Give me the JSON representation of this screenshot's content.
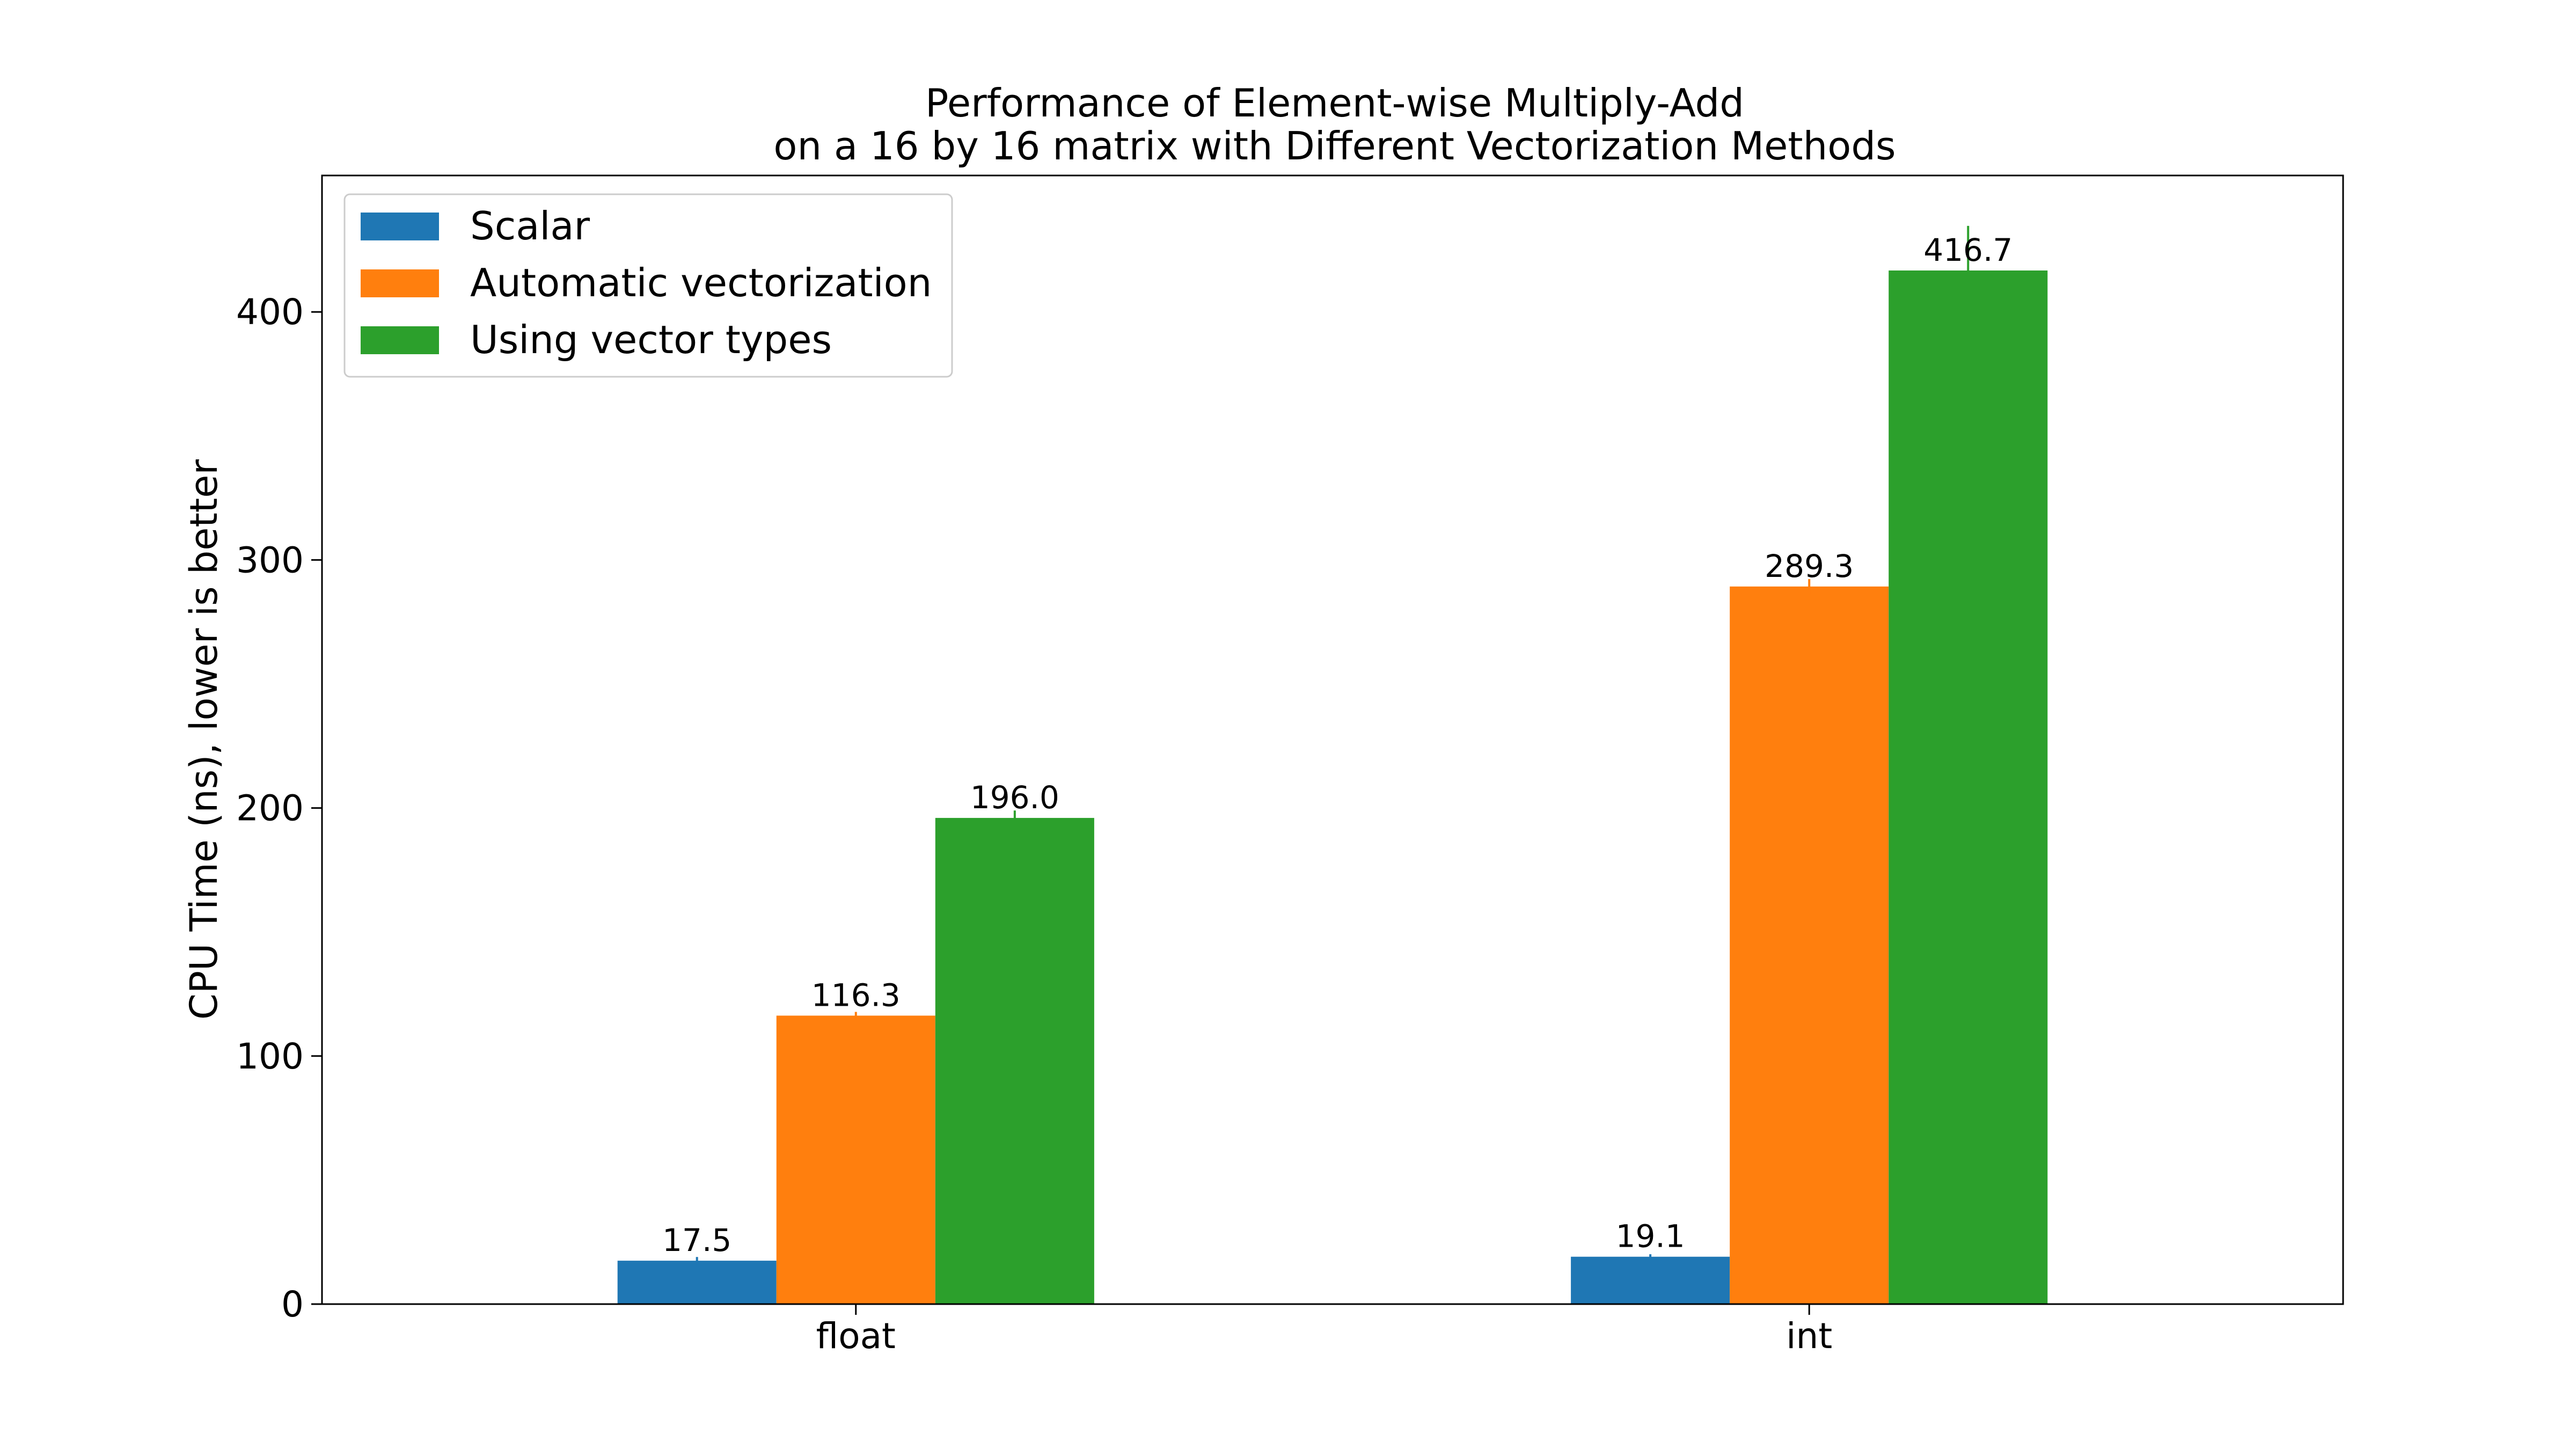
{
  "chart_data": {
    "type": "bar",
    "title": "Performance of Element-wise Multiply-Add",
    "subtitle": "on a 16 by 16 matrix with Different Vectorization Methods",
    "xlabel": "",
    "ylabel": "CPU Time (ns), lower is better",
    "categories": [
      "float",
      "int"
    ],
    "series": [
      {
        "name": "Scalar",
        "color": "#1f77b4",
        "values": [
          17.5,
          19.1
        ],
        "labels": [
          "17.5",
          "19.1"
        ],
        "errors": [
          1.5,
          1.0
        ]
      },
      {
        "name": "Automatic vectorization",
        "color": "#ff7f0e",
        "values": [
          116.3,
          289.3
        ],
        "labels": [
          "116.3",
          "289.3"
        ],
        "errors": [
          1.5,
          3.0
        ]
      },
      {
        "name": "Using vector types",
        "color": "#2ca02c",
        "values": [
          196.0,
          416.7
        ],
        "labels": [
          "196.0",
          "416.7"
        ],
        "errors": [
          3.0,
          18.0
        ]
      }
    ],
    "ylim": [
      0,
      455
    ],
    "yticks": [
      0,
      100,
      200,
      300,
      400
    ],
    "grid": false,
    "legend_position": "top-left"
  }
}
